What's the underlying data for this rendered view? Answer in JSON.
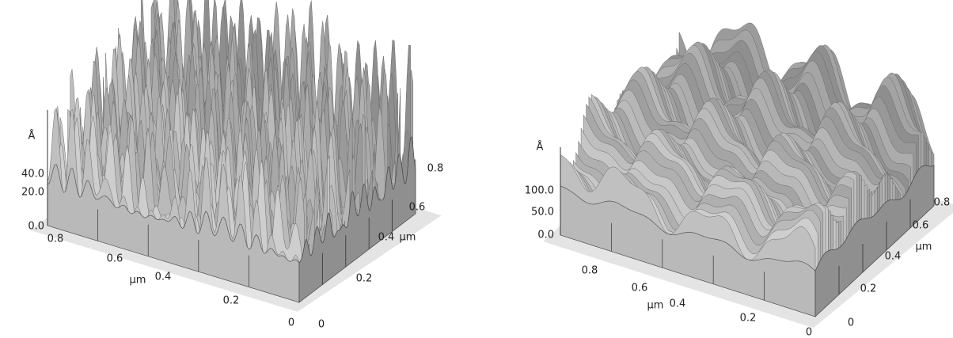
{
  "panels": [
    {
      "z_unit": "Å",
      "z_ticks": [
        "40.0",
        "20.0",
        "0.0"
      ],
      "front_ticks": [
        "0.8",
        "0.6",
        "0.4",
        "0.2",
        "0"
      ],
      "front_unit": "µm",
      "side_ticks": [
        "0.8",
        "0.6",
        "0.4",
        "0.2",
        "0"
      ],
      "side_unit": "µm"
    },
    {
      "z_unit": "Å",
      "z_ticks": [
        "100.0",
        "50.0",
        "0.0"
      ],
      "front_ticks": [
        "0.8",
        "0.6",
        "0.4",
        "0.2",
        "0"
      ],
      "front_unit": "µm",
      "side_ticks": [
        "0.8",
        "0.6",
        "0.4",
        "0.2",
        "0"
      ],
      "side_unit": "µm"
    }
  ]
}
